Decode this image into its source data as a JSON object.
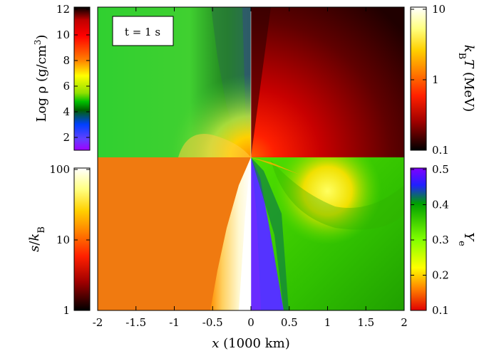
{
  "chart_data": {
    "type": "heatmap",
    "annotation": "t = 1 s",
    "x_axis": {
      "label_italic": "x",
      "label_rest": " (1000 km)",
      "range": [
        -2,
        2
      ],
      "ticks": [
        "-2",
        "-1.5",
        "-1",
        "-0.5",
        "0",
        "0.5",
        "1",
        "1.5",
        "2"
      ]
    },
    "panels": [
      {
        "quadrant": "upper-left",
        "quantity": "density",
        "colorbar": "density_bar"
      },
      {
        "quadrant": "upper-right",
        "quantity": "temperature",
        "colorbar": "temperature_bar"
      },
      {
        "quadrant": "lower-left",
        "quantity": "entropy",
        "colorbar": "entropy_bar"
      },
      {
        "quadrant": "lower-right",
        "quantity": "electron fraction",
        "colorbar": "ye_bar"
      }
    ],
    "colorbars": {
      "density_bar": {
        "label_a": "Log ",
        "label_rho": "ρ",
        "label_b": " (g/cm",
        "label_sup": "3",
        "label_c": ")",
        "range": [
          1,
          12
        ],
        "ticks": [
          "12",
          "10",
          "8",
          "6",
          "4",
          "2"
        ],
        "placement": "left-top"
      },
      "temperature_bar": {
        "label_k": "k",
        "label_sub": "B",
        "label_T": "T",
        "label_unit": " (MeV)",
        "scale": "log",
        "range": [
          0.1,
          10
        ],
        "ticks": [
          "10",
          "1",
          "0.1"
        ],
        "placement": "right-top"
      },
      "entropy_bar": {
        "label_s": "s",
        "label_slash": "/",
        "label_k": "k",
        "label_sub": "B",
        "scale": "log",
        "range": [
          1,
          100
        ],
        "ticks": [
          "100",
          "10",
          "1"
        ],
        "placement": "left-bottom"
      },
      "ye_bar": {
        "label_Y": "Y",
        "label_sub": "e",
        "range": [
          0.1,
          0.5
        ],
        "ticks": [
          "0.5",
          "0.4",
          "0.3",
          "0.2",
          "0.1"
        ],
        "placement": "right-bottom"
      }
    },
    "colors": {
      "rainbow_top": "#8000ff",
      "hot_top": "#fffff0",
      "hot_mid": "#ff3000",
      "hot_bottom": "#000000",
      "entropy_region": "#f07a10",
      "electron_fraction_region": "#22cc00",
      "proton_rich_jet": "#5533ff"
    }
  }
}
